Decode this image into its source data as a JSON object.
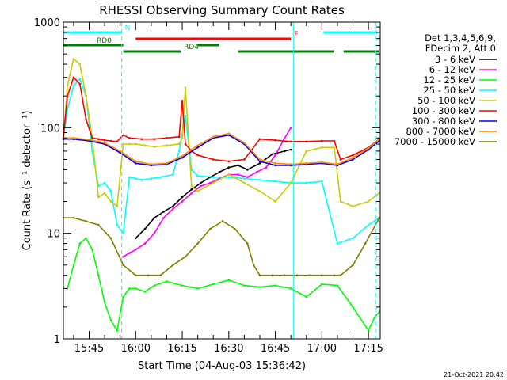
{
  "chart_data": {
    "type": "line",
    "title": "RHESSI Observing Summary Count Rates",
    "xlabel": "Start Time (04-Aug-03 15:36:42)",
    "ylabel": "Count Rate (s⁻¹ detector⁻¹)",
    "yscale": "log",
    "ylim": [
      1,
      1000
    ],
    "xlim_minutes": [
      36.7,
      138.8
    ],
    "x_unit": "minutes after 15:00 UT",
    "x_ticks": [
      {
        "label": "15:45",
        "value": 45
      },
      {
        "label": "16:00",
        "value": 60
      },
      {
        "label": "16:15",
        "value": 75
      },
      {
        "label": "16:30",
        "value": 90
      },
      {
        "label": "16:45",
        "value": 105
      },
      {
        "label": "17:00",
        "value": 120
      },
      {
        "label": "17:15",
        "value": 135
      }
    ],
    "y_ticks": [
      {
        "label": "1",
        "value": 1
      },
      {
        "label": "10",
        "value": 10
      },
      {
        "label": "100",
        "value": 100
      },
      {
        "label": "1000",
        "value": 1000
      }
    ],
    "legend": {
      "position": "top-right",
      "header": [
        "Det 1,3,4,5,6,9,",
        "FDecim 2, Att 0"
      ]
    },
    "series": [
      {
        "name": "3 - 6 keV",
        "color": "#000000",
        "x": [
          60,
          63,
          66,
          69,
          72,
          75,
          78,
          81,
          84,
          87,
          90,
          93,
          96,
          100,
          104,
          108,
          110
        ],
        "values": [
          9,
          11,
          14,
          16,
          18,
          22,
          26,
          30,
          34,
          38,
          42,
          44,
          40,
          46,
          56,
          60,
          62
        ]
      },
      {
        "name": "6 - 12 keV",
        "color": "#ff00ff",
        "x": [
          56,
          58,
          60,
          63,
          66,
          69,
          72,
          75,
          78,
          81,
          84,
          87,
          90,
          93,
          96,
          99,
          102,
          105,
          108,
          110
        ],
        "values": [
          6,
          6.5,
          7,
          8,
          10,
          14,
          17,
          20,
          24,
          28,
          30,
          33,
          36,
          36,
          34,
          38,
          42,
          55,
          80,
          100
        ]
      },
      {
        "name": "12 - 25 keV",
        "color": "#00ff00",
        "x": [
          38,
          40,
          42,
          44,
          46,
          48,
          50,
          52,
          54,
          56,
          58,
          60,
          63,
          66,
          70,
          75,
          80,
          85,
          90,
          95,
          100,
          105,
          110,
          115,
          120,
          125,
          130,
          135,
          137,
          138.5
        ],
        "values": [
          3,
          5,
          8,
          9,
          7,
          4,
          2.2,
          1.5,
          1.2,
          2.5,
          3,
          3,
          2.8,
          3.2,
          3.5,
          3.2,
          3.0,
          3.3,
          3.6,
          3.2,
          3.1,
          3.2,
          3.0,
          2.5,
          3.3,
          3.2,
          2.0,
          1.2,
          1.6,
          1.8
        ]
      },
      {
        "name": "25 - 50 keV",
        "color": "#00ffff",
        "x": [
          36.7,
          38,
          40,
          42,
          44,
          46,
          48,
          50,
          52,
          54,
          56,
          58,
          60,
          62,
          65,
          68,
          72,
          74,
          76,
          78,
          80,
          85,
          90,
          95,
          100,
          105,
          110,
          115,
          120,
          125,
          130,
          135,
          138.5
        ],
        "values": [
          80,
          150,
          250,
          290,
          200,
          60,
          28,
          30,
          25,
          12,
          10,
          34,
          33,
          32,
          33,
          34,
          36,
          60,
          130,
          40,
          35,
          34,
          34,
          33,
          32,
          31,
          30,
          30,
          31,
          8,
          9,
          12,
          14
        ]
      },
      {
        "name": "50 - 100 keV",
        "color": "#cccc00",
        "x": [
          36.7,
          38,
          40,
          42,
          44,
          46,
          48,
          50,
          52,
          54,
          56,
          58,
          60,
          63,
          66,
          70,
          74,
          75,
          76,
          78,
          80,
          85,
          90,
          95,
          100,
          105,
          110,
          115,
          120,
          124,
          126,
          130,
          135,
          138.5
        ],
        "values": [
          80,
          250,
          450,
          400,
          200,
          80,
          22,
          24,
          20,
          18,
          70,
          70,
          70,
          68,
          66,
          68,
          70,
          80,
          240,
          28,
          25,
          30,
          36,
          30,
          25,
          20,
          30,
          60,
          65,
          65,
          20,
          18,
          20,
          24
        ]
      },
      {
        "name": "100 - 300 keV",
        "color": "#ff0000",
        "x": [
          36.7,
          38,
          40,
          42,
          44,
          46,
          48,
          50,
          52,
          54,
          56,
          58,
          62,
          66,
          70,
          74,
          75,
          76,
          78,
          80,
          85,
          90,
          95,
          100,
          105,
          110,
          115,
          120,
          124,
          126,
          130,
          135,
          138.5
        ],
        "values": [
          80,
          200,
          300,
          260,
          120,
          80,
          78,
          76,
          75,
          74,
          85,
          80,
          78,
          78,
          80,
          82,
          180,
          70,
          60,
          55,
          50,
          48,
          50,
          78,
          76,
          74,
          74,
          75,
          75,
          50,
          55,
          65,
          78
        ]
      },
      {
        "name": "300 - 800 keV",
        "color": "#0000ff",
        "x": [
          36.7,
          40,
          45,
          50,
          55,
          60,
          65,
          70,
          75,
          80,
          85,
          90,
          95,
          100,
          105,
          110,
          115,
          120,
          125,
          130,
          135,
          138.5
        ],
        "values": [
          78,
          78,
          75,
          70,
          58,
          46,
          44,
          45,
          52,
          65,
          80,
          85,
          70,
          48,
          44,
          44,
          45,
          46,
          44,
          50,
          62,
          75
        ]
      },
      {
        "name": "800 - 7000 keV",
        "color": "#ff8800",
        "x": [
          36.7,
          40,
          45,
          50,
          55,
          60,
          65,
          70,
          75,
          80,
          85,
          90,
          95,
          100,
          105,
          110,
          115,
          120,
          125,
          130,
          135,
          138.5
        ],
        "values": [
          80,
          80,
          77,
          72,
          60,
          48,
          45,
          46,
          54,
          68,
          82,
          88,
          72,
          50,
          46,
          45,
          46,
          47,
          45,
          52,
          64,
          78
        ]
      },
      {
        "name": "7000 - 15000 keV",
        "color": "#808000",
        "x": [
          36.7,
          40,
          44,
          48,
          52,
          56,
          60,
          64,
          68,
          72,
          76,
          80,
          84,
          88,
          92,
          96,
          98,
          100,
          104,
          108,
          112,
          116,
          120,
          124,
          126,
          130,
          134,
          138.5
        ],
        "values": [
          14,
          14,
          13,
          12,
          9,
          5,
          4,
          4,
          4,
          5,
          6,
          8,
          11,
          13,
          11,
          8,
          5,
          4,
          4,
          4,
          4,
          4,
          4,
          4,
          4,
          5,
          8,
          14
        ]
      }
    ],
    "annotations": [
      {
        "label": "N",
        "color": "#00ffff",
        "intervals": [
          [
            36.7,
            55.5
          ],
          [
            120.5,
            138
          ]
        ]
      },
      {
        "label": "F",
        "color": "#ff0000",
        "intervals": [
          [
            60,
            110
          ]
        ]
      },
      {
        "label": "RD0",
        "color": "#008000",
        "intervals": [
          [
            36.7,
            56
          ],
          [
            80,
            87
          ]
        ]
      },
      {
        "label": "RD4",
        "color": "#008000",
        "intervals": [
          [
            56,
            74.5
          ],
          [
            93,
            124
          ],
          [
            127,
            138.5
          ]
        ]
      }
    ],
    "markers": [
      {
        "minute": 55.5,
        "style": "dashed",
        "color": "#00ffff"
      },
      {
        "minute": 110.8,
        "style": "solid",
        "color": "#00ffff"
      },
      {
        "minute": 137.3,
        "style": "dashed",
        "color": "#00ffff"
      }
    ],
    "stamp": "21-Oct-2021 20:42"
  }
}
